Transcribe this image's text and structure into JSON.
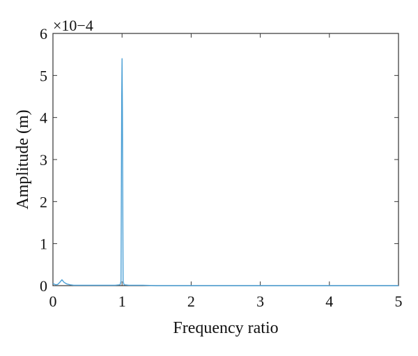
{
  "chart_data": {
    "type": "line",
    "title": "",
    "xlabel": "Frequency ratio",
    "ylabel": "Amplitude (m)",
    "y_scale_label": "×10−4",
    "xlim": [
      0,
      5
    ],
    "ylim": [
      0,
      6
    ],
    "x_ticks": [
      "0",
      "1",
      "2",
      "3",
      "4",
      "5"
    ],
    "y_ticks": [
      "0",
      "1",
      "2",
      "3",
      "4",
      "5",
      "6"
    ],
    "grid": false,
    "legend": "none",
    "line_color": "#4a9fd5",
    "series": [
      {
        "x": [
          0,
          0.04,
          0.07,
          0.1,
          0.13,
          0.16,
          0.2,
          0.25,
          0.3,
          0.4,
          0.5,
          0.6,
          0.7,
          0.8,
          0.9,
          0.97,
          0.985,
          0.995,
          1.0,
          1.005,
          1.015,
          1.03,
          1.1,
          1.2,
          1.3,
          1.5,
          2,
          2.5,
          3,
          3.5,
          4,
          4.5,
          5
        ],
        "y": [
          0.05,
          0.02,
          0.03,
          0.08,
          0.14,
          0.08,
          0.04,
          0.02,
          0.01,
          0.01,
          0.01,
          0.01,
          0.01,
          0.01,
          0.01,
          0.02,
          0.1,
          4.5,
          5.4,
          4.2,
          0.1,
          0.02,
          0.01,
          0.01,
          0.01,
          0.0,
          0.0,
          0.0,
          0.0,
          0.0,
          0.0,
          0.0,
          0.0
        ]
      }
    ]
  }
}
